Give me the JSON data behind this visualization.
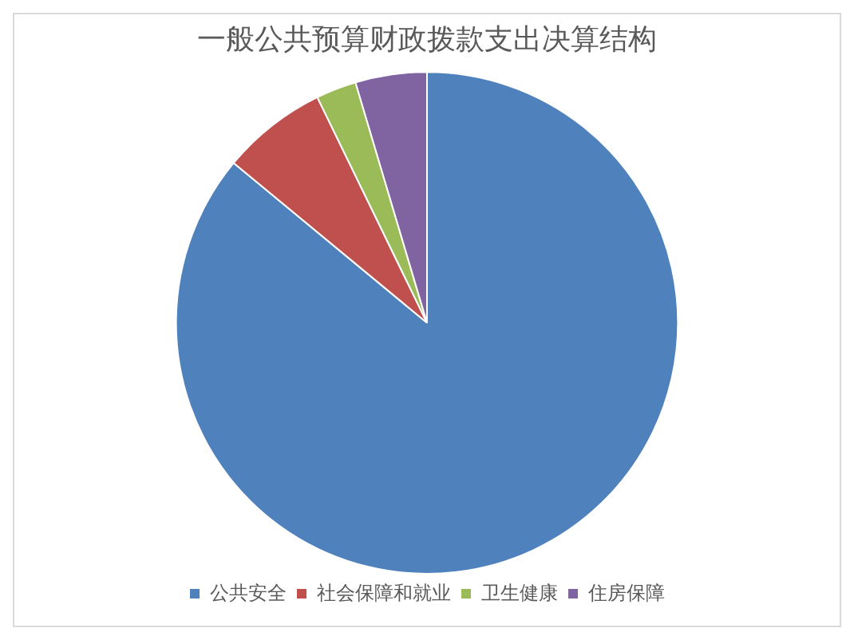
{
  "chart_data": {
    "type": "pie",
    "title": "一般公共预算财政拨款支出决算结构",
    "categories": [
      "公共安全",
      "社会保障和就业",
      "卫生健康",
      "住房保障"
    ],
    "values": [
      86,
      6.8,
      2.6,
      4.6
    ],
    "colors": [
      "#4f81bd",
      "#c0504d",
      "#9bbb59",
      "#8064a2"
    ],
    "legend": "bottom"
  }
}
